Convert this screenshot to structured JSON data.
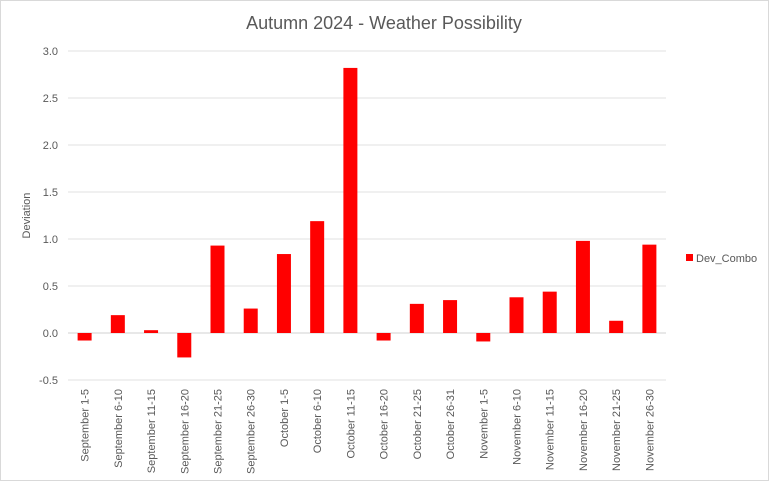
{
  "chart_data": {
    "type": "bar",
    "title": "Autumn 2024 - Weather Possibility",
    "xlabel": "",
    "ylabel": "Deviation",
    "ylim": [
      -0.5,
      3.0
    ],
    "yticks": [
      -0.5,
      0.0,
      0.5,
      1.0,
      1.5,
      2.0,
      2.5,
      3.0
    ],
    "ytick_labels": [
      "-0.5",
      "0.0",
      "0.5",
      "1.0",
      "1.5",
      "2.0",
      "2.5",
      "3.0"
    ],
    "grid": true,
    "legend_position": "right",
    "categories": [
      "September 1-5",
      "September 6-10",
      "September 11-15",
      "September 16-20",
      "September 21-25",
      "September 26-30",
      "October 1-5",
      "October 6-10",
      "October 11-15",
      "October 16-20",
      "October 21-25",
      "October 26-31",
      "November 1-5",
      "November 6-10",
      "November 11-15",
      "November 16-20",
      "November 21-25",
      "November 26-30"
    ],
    "series": [
      {
        "name": "Dev_Combo",
        "color": "#ff0000",
        "values": [
          -0.08,
          0.19,
          0.03,
          -0.26,
          0.93,
          0.26,
          0.84,
          1.19,
          2.82,
          -0.08,
          0.31,
          0.35,
          -0.09,
          0.38,
          0.44,
          0.98,
          0.13,
          0.94
        ]
      }
    ]
  }
}
